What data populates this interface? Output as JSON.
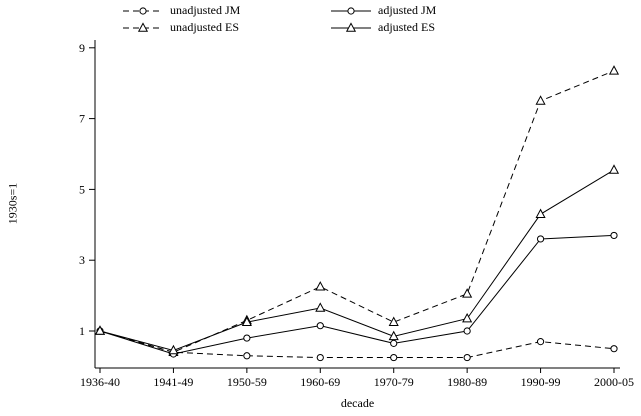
{
  "figure": {
    "ylabel": "1930s=1",
    "xlabel": "decade"
  },
  "chart_data": {
    "type": "line",
    "title": "",
    "xlabel": "decade",
    "ylabel": "1930s=1",
    "ylim": [
      0,
      9.25
    ],
    "yticks": [
      1,
      3,
      5,
      7,
      9
    ],
    "grid": false,
    "legend_position": "top",
    "categories": [
      "1936-40",
      "1941-49",
      "1950-59",
      "1960-69",
      "1970-79",
      "1980-89",
      "1990-99",
      "2000-05"
    ],
    "series": [
      {
        "name": "unadjusted JM",
        "line": "dashed",
        "marker": "circle",
        "values": [
          1.0,
          0.4,
          0.3,
          0.25,
          0.25,
          0.25,
          0.7,
          0.5
        ]
      },
      {
        "name": "unadjusted ES",
        "line": "dashed",
        "marker": "triangle",
        "values": [
          1.0,
          0.4,
          1.3,
          2.25,
          1.25,
          2.05,
          7.5,
          8.35
        ]
      },
      {
        "name": "adjusted JM",
        "line": "solid",
        "marker": "circle",
        "values": [
          1.0,
          0.35,
          0.8,
          1.15,
          0.65,
          1.0,
          3.6,
          3.7
        ]
      },
      {
        "name": "adjusted ES",
        "line": "solid",
        "marker": "triangle",
        "values": [
          1.0,
          0.45,
          1.25,
          1.65,
          0.85,
          1.35,
          4.3,
          5.55
        ]
      }
    ]
  }
}
